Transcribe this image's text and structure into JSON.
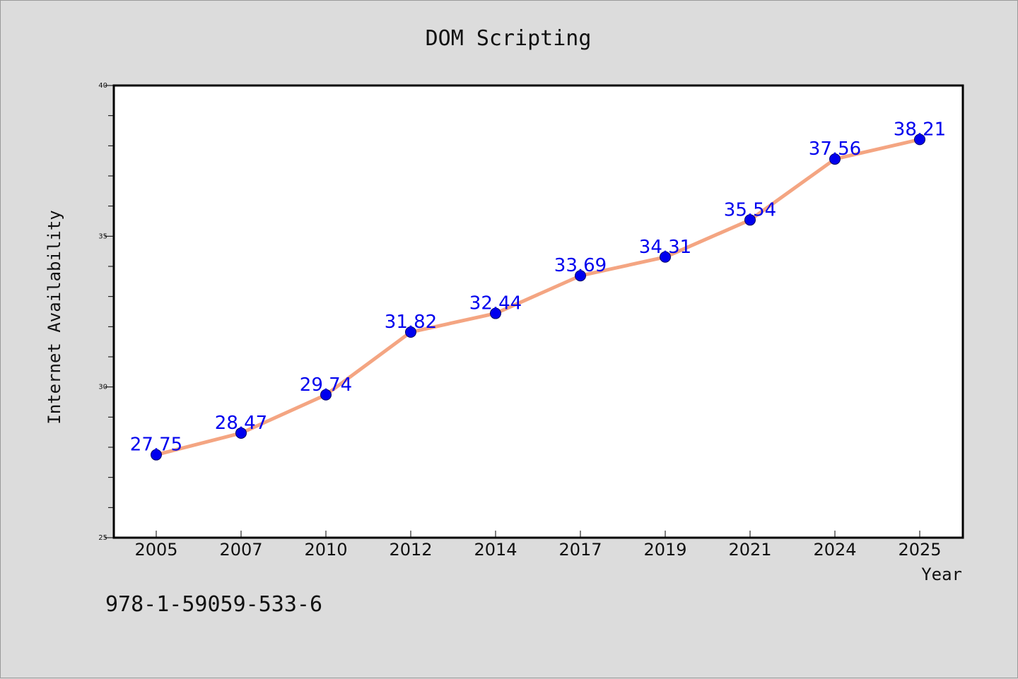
{
  "footer": {
    "isbn": "978-1-59059-533-6"
  },
  "colors": {
    "background": "#dcdcdc",
    "plot_background": "#ffffff",
    "line": "#f4a582",
    "marker": "#0000ee",
    "label": "#0000ee"
  },
  "chart_data": {
    "type": "line",
    "title": "DOM Scripting",
    "xlabel": "Year",
    "ylabel": "Internet Availability",
    "categories": [
      "2005",
      "2007",
      "2010",
      "2012",
      "2014",
      "2017",
      "2019",
      "2021",
      "2024",
      "2025"
    ],
    "series": [
      {
        "values": [
          27.75,
          28.47,
          29.74,
          31.82,
          32.44,
          33.69,
          34.31,
          35.54,
          37.56,
          38.21
        ],
        "labels": [
          "27.75",
          "28.47",
          "29.74",
          "31.82",
          "32.44",
          "33.69",
          "34.31",
          "35.54",
          "37.56",
          "38.21"
        ]
      }
    ],
    "ylim": [
      25,
      40
    ],
    "yticks": [
      25,
      30,
      35,
      40
    ],
    "ytick_labels": [
      "25",
      "30",
      "35",
      "40"
    ],
    "yminor_step": 1,
    "grid": false,
    "legend": "none",
    "marker": "circle"
  }
}
